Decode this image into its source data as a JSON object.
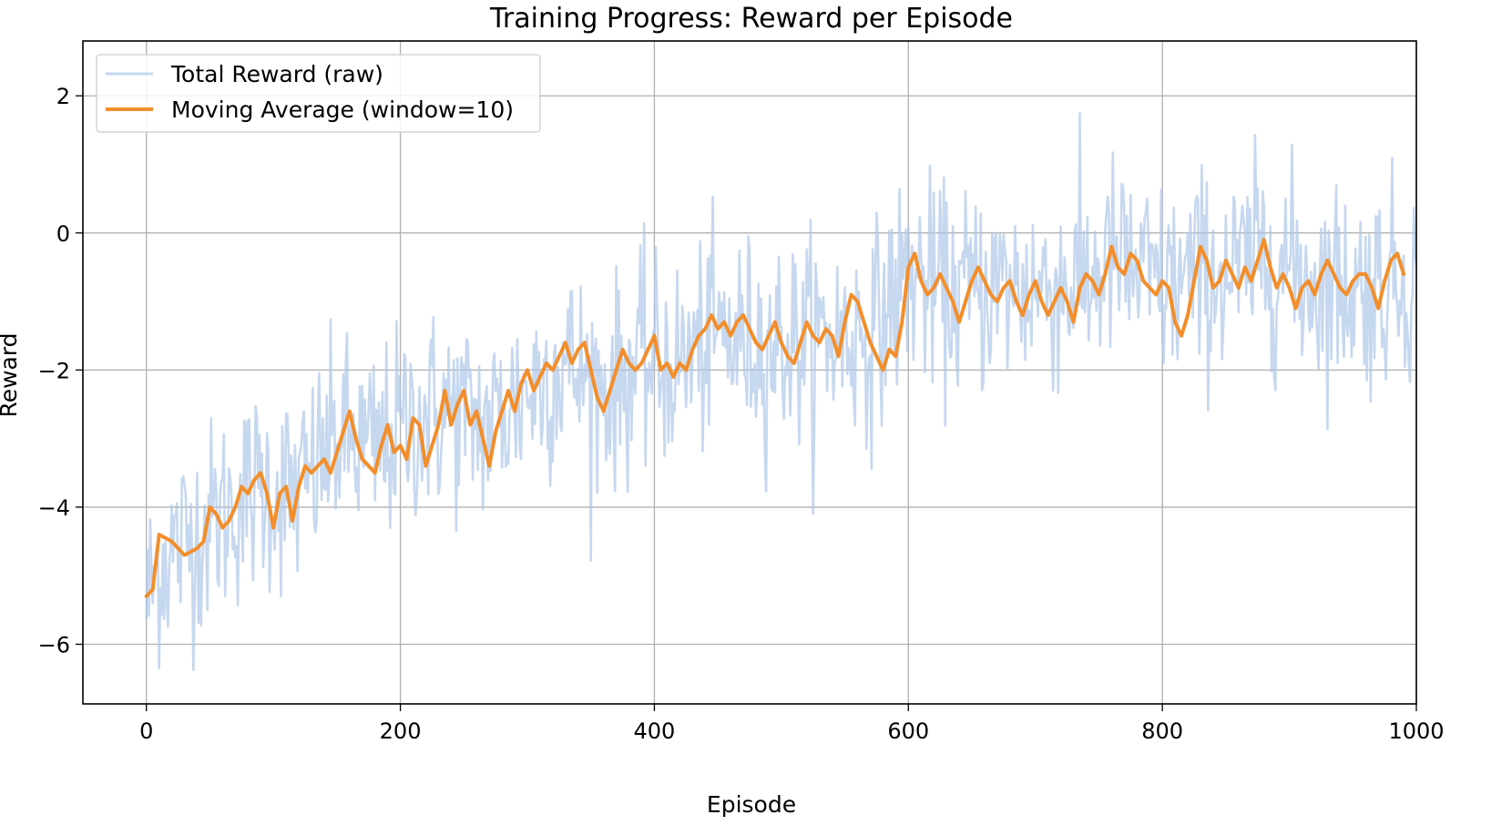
{
  "chart_data": {
    "type": "line",
    "title": "Training Progress: Reward per Episode",
    "xlabel": "Episode",
    "ylabel": "Reward",
    "xlim": [
      -50,
      1000
    ],
    "ylim": [
      -6.87,
      2.8
    ],
    "x_ticks": [
      0,
      200,
      400,
      600,
      800,
      1000
    ],
    "x_tick_labels": [
      "0",
      "200",
      "400",
      "600",
      "800",
      "1000"
    ],
    "y_ticks": [
      -6,
      -4,
      -2,
      0,
      2
    ],
    "y_tick_labels": [
      "−6",
      "−4",
      "−2",
      "0",
      "2"
    ],
    "grid": true,
    "legend_position": "top-left",
    "x_range": [
      0,
      1000
    ],
    "ma_x_range": [
      0,
      990
    ],
    "series": [
      {
        "name": "Total Reward (raw)",
        "color": "#aec7e8",
        "key_points": [
          [
            0,
            -5.4
          ],
          [
            10,
            -4.8
          ],
          [
            30,
            -4.5
          ],
          [
            60,
            -4.1
          ],
          [
            90,
            -3.7
          ],
          [
            120,
            -3.8
          ],
          [
            150,
            -3.0
          ],
          [
            180,
            -3.2
          ],
          [
            210,
            -2.7
          ],
          [
            240,
            -2.6
          ],
          [
            270,
            -2.8
          ],
          [
            300,
            -2.3
          ],
          [
            330,
            -1.9
          ],
          [
            360,
            -2.3
          ],
          [
            390,
            -1.9
          ],
          [
            420,
            -1.9
          ],
          [
            450,
            -1.5
          ],
          [
            480,
            -1.6
          ],
          [
            510,
            -1.6
          ],
          [
            540,
            -1.5
          ],
          [
            570,
            -1.5
          ],
          [
            600,
            -0.6
          ],
          [
            630,
            -0.9
          ],
          [
            660,
            -0.8
          ],
          [
            700,
            -0.8
          ],
          [
            740,
            -0.7
          ],
          [
            760,
            -0.4
          ],
          [
            800,
            -0.8
          ],
          [
            830,
            -0.6
          ],
          [
            860,
            -0.6
          ],
          [
            880,
            -0.3
          ],
          [
            920,
            -0.7
          ],
          [
            960,
            -0.8
          ],
          [
            1000,
            -0.6
          ]
        ],
        "noise_std": 0.75
      },
      {
        "name": "Moving Average (window=10)",
        "color": "#f28e2b",
        "values": [
          [
            0,
            -5.3
          ],
          [
            5,
            -5.2
          ],
          [
            10,
            -4.4
          ],
          [
            20,
            -4.5
          ],
          [
            30,
            -4.7
          ],
          [
            40,
            -4.6
          ],
          [
            45,
            -4.5
          ],
          [
            50,
            -4.0
          ],
          [
            55,
            -4.1
          ],
          [
            60,
            -4.3
          ],
          [
            65,
            -4.2
          ],
          [
            70,
            -4.0
          ],
          [
            75,
            -3.7
          ],
          [
            80,
            -3.8
          ],
          [
            85,
            -3.6
          ],
          [
            90,
            -3.5
          ],
          [
            95,
            -3.8
          ],
          [
            100,
            -4.3
          ],
          [
            105,
            -3.8
          ],
          [
            110,
            -3.7
          ],
          [
            115,
            -4.2
          ],
          [
            120,
            -3.7
          ],
          [
            125,
            -3.4
          ],
          [
            130,
            -3.5
          ],
          [
            140,
            -3.3
          ],
          [
            145,
            -3.5
          ],
          [
            150,
            -3.2
          ],
          [
            155,
            -2.9
          ],
          [
            160,
            -2.6
          ],
          [
            165,
            -3.0
          ],
          [
            170,
            -3.3
          ],
          [
            175,
            -3.4
          ],
          [
            180,
            -3.5
          ],
          [
            185,
            -3.1
          ],
          [
            190,
            -2.8
          ],
          [
            195,
            -3.2
          ],
          [
            200,
            -3.1
          ],
          [
            205,
            -3.3
          ],
          [
            210,
            -2.7
          ],
          [
            215,
            -2.8
          ],
          [
            220,
            -3.4
          ],
          [
            225,
            -3.1
          ],
          [
            230,
            -2.8
          ],
          [
            235,
            -2.3
          ],
          [
            240,
            -2.8
          ],
          [
            245,
            -2.5
          ],
          [
            250,
            -2.3
          ],
          [
            255,
            -2.8
          ],
          [
            260,
            -2.6
          ],
          [
            265,
            -3.0
          ],
          [
            270,
            -3.4
          ],
          [
            275,
            -2.9
          ],
          [
            280,
            -2.6
          ],
          [
            285,
            -2.3
          ],
          [
            290,
            -2.6
          ],
          [
            295,
            -2.2
          ],
          [
            300,
            -2.0
          ],
          [
            305,
            -2.3
          ],
          [
            310,
            -2.1
          ],
          [
            315,
            -1.9
          ],
          [
            320,
            -2.0
          ],
          [
            325,
            -1.8
          ],
          [
            330,
            -1.6
          ],
          [
            335,
            -1.9
          ],
          [
            340,
            -1.7
          ],
          [
            345,
            -1.6
          ],
          [
            350,
            -2.0
          ],
          [
            355,
            -2.4
          ],
          [
            360,
            -2.6
          ],
          [
            365,
            -2.3
          ],
          [
            370,
            -2.0
          ],
          [
            375,
            -1.7
          ],
          [
            380,
            -1.9
          ],
          [
            385,
            -2.0
          ],
          [
            390,
            -1.9
          ],
          [
            395,
            -1.7
          ],
          [
            400,
            -1.5
          ],
          [
            405,
            -2.0
          ],
          [
            410,
            -1.9
          ],
          [
            415,
            -2.1
          ],
          [
            420,
            -1.9
          ],
          [
            425,
            -2.0
          ],
          [
            430,
            -1.7
          ],
          [
            435,
            -1.5
          ],
          [
            440,
            -1.4
          ],
          [
            445,
            -1.2
          ],
          [
            450,
            -1.4
          ],
          [
            455,
            -1.3
          ],
          [
            460,
            -1.5
          ],
          [
            465,
            -1.3
          ],
          [
            470,
            -1.2
          ],
          [
            475,
            -1.4
          ],
          [
            480,
            -1.6
          ],
          [
            485,
            -1.7
          ],
          [
            490,
            -1.5
          ],
          [
            495,
            -1.3
          ],
          [
            500,
            -1.6
          ],
          [
            505,
            -1.8
          ],
          [
            510,
            -1.9
          ],
          [
            515,
            -1.6
          ],
          [
            520,
            -1.3
          ],
          [
            525,
            -1.5
          ],
          [
            530,
            -1.6
          ],
          [
            535,
            -1.4
          ],
          [
            540,
            -1.5
          ],
          [
            545,
            -1.8
          ],
          [
            550,
            -1.3
          ],
          [
            555,
            -0.9
          ],
          [
            560,
            -1.0
          ],
          [
            565,
            -1.3
          ],
          [
            570,
            -1.6
          ],
          [
            575,
            -1.8
          ],
          [
            580,
            -2.0
          ],
          [
            585,
            -1.7
          ],
          [
            590,
            -1.8
          ],
          [
            595,
            -1.3
          ],
          [
            600,
            -0.5
          ],
          [
            605,
            -0.3
          ],
          [
            610,
            -0.7
          ],
          [
            615,
            -0.9
          ],
          [
            620,
            -0.8
          ],
          [
            625,
            -0.6
          ],
          [
            630,
            -0.8
          ],
          [
            635,
            -1.0
          ],
          [
            640,
            -1.3
          ],
          [
            645,
            -1.0
          ],
          [
            650,
            -0.7
          ],
          [
            655,
            -0.5
          ],
          [
            660,
            -0.7
          ],
          [
            665,
            -0.9
          ],
          [
            670,
            -1.0
          ],
          [
            675,
            -0.8
          ],
          [
            680,
            -0.7
          ],
          [
            685,
            -1.0
          ],
          [
            690,
            -1.2
          ],
          [
            695,
            -0.9
          ],
          [
            700,
            -0.7
          ],
          [
            705,
            -1.0
          ],
          [
            710,
            -1.2
          ],
          [
            715,
            -1.0
          ],
          [
            720,
            -0.8
          ],
          [
            725,
            -1.0
          ],
          [
            730,
            -1.3
          ],
          [
            735,
            -0.8
          ],
          [
            740,
            -0.6
          ],
          [
            745,
            -0.7
          ],
          [
            750,
            -0.9
          ],
          [
            755,
            -0.6
          ],
          [
            760,
            -0.2
          ],
          [
            765,
            -0.5
          ],
          [
            770,
            -0.6
          ],
          [
            775,
            -0.3
          ],
          [
            780,
            -0.4
          ],
          [
            785,
            -0.7
          ],
          [
            790,
            -0.8
          ],
          [
            795,
            -0.9
          ],
          [
            800,
            -0.7
          ],
          [
            805,
            -0.8
          ],
          [
            810,
            -1.3
          ],
          [
            815,
            -1.5
          ],
          [
            820,
            -1.2
          ],
          [
            825,
            -0.7
          ],
          [
            830,
            -0.2
          ],
          [
            835,
            -0.4
          ],
          [
            840,
            -0.8
          ],
          [
            845,
            -0.7
          ],
          [
            850,
            -0.4
          ],
          [
            855,
            -0.6
          ],
          [
            860,
            -0.8
          ],
          [
            865,
            -0.5
          ],
          [
            870,
            -0.7
          ],
          [
            875,
            -0.4
          ],
          [
            880,
            -0.1
          ],
          [
            885,
            -0.5
          ],
          [
            890,
            -0.8
          ],
          [
            895,
            -0.6
          ],
          [
            900,
            -0.8
          ],
          [
            905,
            -1.1
          ],
          [
            910,
            -0.8
          ],
          [
            915,
            -0.7
          ],
          [
            920,
            -0.9
          ],
          [
            925,
            -0.6
          ],
          [
            930,
            -0.4
          ],
          [
            935,
            -0.6
          ],
          [
            940,
            -0.8
          ],
          [
            945,
            -0.9
          ],
          [
            950,
            -0.7
          ],
          [
            955,
            -0.6
          ],
          [
            960,
            -0.6
          ],
          [
            965,
            -0.8
          ],
          [
            970,
            -1.1
          ],
          [
            975,
            -0.7
          ],
          [
            980,
            -0.4
          ],
          [
            985,
            -0.3
          ],
          [
            990,
            -0.6
          ]
        ]
      }
    ]
  }
}
